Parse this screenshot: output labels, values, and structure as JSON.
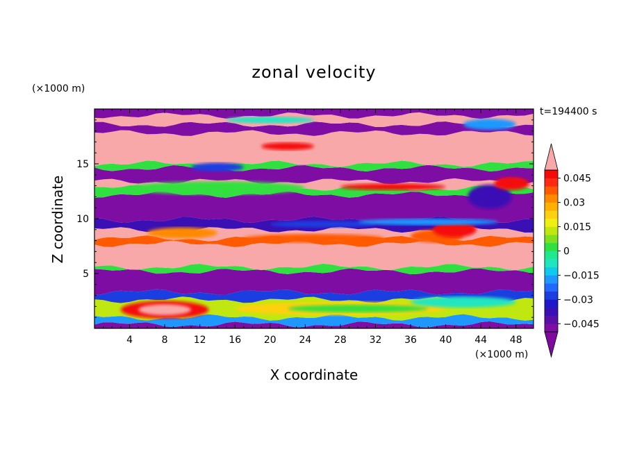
{
  "chart_data": {
    "type": "heatmap",
    "title": "zonal velocity",
    "xlabel": "X coordinate",
    "ylabel": "Z coordinate",
    "x_unit_label": "(×1000 m)",
    "y_unit_label": "(×1000 m)",
    "time_label": "t=194400 s",
    "xlim": [
      0,
      50
    ],
    "ylim": [
      0,
      20
    ],
    "x_ticks": [
      4,
      8,
      12,
      16,
      20,
      24,
      28,
      32,
      36,
      40,
      44,
      48
    ],
    "y_ticks": [
      5,
      10,
      15
    ],
    "colorbar": {
      "tick_labels": [
        "0.045",
        "0.03",
        "0.015",
        "0",
        "−0.015",
        "−0.03",
        "−0.045"
      ],
      "tick_values": [
        0.045,
        0.03,
        0.015,
        0,
        -0.015,
        -0.03,
        -0.045
      ],
      "levels": [
        -0.05,
        -0.045,
        -0.04,
        -0.035,
        -0.03,
        -0.025,
        -0.02,
        -0.015,
        -0.01,
        -0.005,
        0,
        0.005,
        0.01,
        0.015,
        0.02,
        0.025,
        0.03,
        0.035,
        0.04,
        0.045,
        0.05
      ],
      "colors": [
        "#7e0da4",
        "#5a0fa8",
        "#3a0fb4",
        "#1e18c8",
        "#1a3ee0",
        "#2068ff",
        "#1e98ff",
        "#10c8f0",
        "#20e6c0",
        "#20e890",
        "#30e040",
        "#80e020",
        "#c0e810",
        "#f0f010",
        "#ffd010",
        "#ffb000",
        "#ff8a00",
        "#ff5a00",
        "#ff2a10",
        "#f50a0a"
      ],
      "over_color": "#f8a8a8",
      "under_color": "#800aa0"
    },
    "bands": [
      {
        "z": [
          0,
          0.35
        ],
        "value": -0.05
      },
      {
        "z": [
          0.35,
          1.0
        ],
        "value": -0.02
      },
      {
        "z": [
          1.0,
          2.6
        ],
        "value": 0.01
      },
      {
        "z": [
          2.6,
          3.3
        ],
        "value": -0.03
      },
      {
        "z": [
          3.3,
          5.2
        ],
        "value": -0.05
      },
      {
        "z": [
          5.2,
          5.6
        ],
        "value": 0.0
      },
      {
        "z": [
          5.6,
          7.7
        ],
        "value": 0.05
      },
      {
        "z": [
          7.7,
          8.2
        ],
        "value": 0.035
      },
      {
        "z": [
          8.2,
          9.0
        ],
        "value": 0.05
      },
      {
        "z": [
          9.0,
          9.9
        ],
        "value": -0.04
      },
      {
        "z": [
          9.9,
          12.2
        ],
        "value": -0.05
      },
      {
        "z": [
          12.2,
          12.8
        ],
        "value": 0.0
      },
      {
        "z": [
          12.8,
          13.4
        ],
        "value": 0.05
      },
      {
        "z": [
          13.4,
          14.6
        ],
        "value": -0.05
      },
      {
        "z": [
          14.6,
          15.0
        ],
        "value": 0.0
      },
      {
        "z": [
          15.0,
          17.8
        ],
        "value": 0.05
      },
      {
        "z": [
          17.8,
          18.6
        ],
        "value": -0.05
      },
      {
        "z": [
          18.6,
          19.4
        ],
        "value": 0.05
      },
      {
        "z": [
          19.4,
          20.0
        ],
        "value": -0.05
      }
    ]
  }
}
